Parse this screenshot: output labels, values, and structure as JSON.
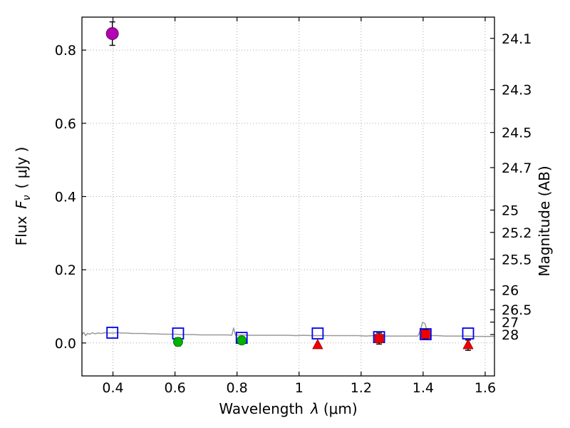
{
  "figure": {
    "background": "#ffffff"
  },
  "chart_data": {
    "type": "scatter",
    "title": "",
    "xlabel": {
      "word": "Wavelength",
      "symbol": "λ",
      "units": "(μm)",
      "full": "Wavelength λ (μm)"
    },
    "ylabel_left": {
      "word": "Flux",
      "symbol": "F",
      "sub": "ν",
      "units": "( μJy )",
      "full": "Flux Fν ( μJy )"
    },
    "ylabel_right": {
      "full": "Magnitude (AB)"
    },
    "xlim": [
      0.3,
      1.63
    ],
    "ylim": [
      -0.09,
      0.89
    ],
    "grid": {
      "show": true,
      "style": "dotted",
      "color": "#aaaaaa"
    },
    "legend": "none",
    "x_ticks": {
      "values": [
        0.4,
        0.6,
        0.8,
        1.0,
        1.2,
        1.4,
        1.6
      ],
      "labels": [
        "0.4",
        "0.6",
        "0.8",
        "1",
        "1.2",
        "1.4",
        "1.6"
      ]
    },
    "y_ticks_flux": {
      "values": [
        0.0,
        0.2,
        0.4,
        0.6,
        0.8
      ],
      "labels": [
        "0.0",
        "0.2",
        "0.4",
        "0.6",
        "0.8"
      ]
    },
    "y_ticks_mag": {
      "labels": [
        "24.1",
        "24.3",
        "24.5",
        "24.7",
        "25",
        "25.2",
        "25.5",
        "26",
        "26.5",
        "27",
        "28"
      ],
      "flux_values": [
        0.832,
        0.692,
        0.575,
        0.479,
        0.363,
        0.302,
        0.229,
        0.145,
        0.091,
        0.057,
        0.023
      ]
    },
    "series": [
      {
        "name": "model-spectrum",
        "kind": "line",
        "color": "#999999",
        "width": 1.5,
        "points": [
          [
            0.3,
            0.023
          ],
          [
            0.306,
            0.029
          ],
          [
            0.312,
            0.02
          ],
          [
            0.318,
            0.026
          ],
          [
            0.326,
            0.024
          ],
          [
            0.334,
            0.028
          ],
          [
            0.342,
            0.025
          ],
          [
            0.352,
            0.027
          ],
          [
            0.362,
            0.026
          ],
          [
            0.374,
            0.028
          ],
          [
            0.386,
            0.027
          ],
          [
            0.4,
            0.027
          ],
          [
            0.415,
            0.028
          ],
          [
            0.43,
            0.027
          ],
          [
            0.445,
            0.027
          ],
          [
            0.46,
            0.026
          ],
          [
            0.48,
            0.026
          ],
          [
            0.5,
            0.026
          ],
          [
            0.52,
            0.025
          ],
          [
            0.54,
            0.025
          ],
          [
            0.56,
            0.024
          ],
          [
            0.58,
            0.024
          ],
          [
            0.6,
            0.024
          ],
          [
            0.62,
            0.023
          ],
          [
            0.64,
            0.023
          ],
          [
            0.66,
            0.023
          ],
          [
            0.68,
            0.022
          ],
          [
            0.7,
            0.022
          ],
          [
            0.72,
            0.022
          ],
          [
            0.745,
            0.022
          ],
          [
            0.77,
            0.022
          ],
          [
            0.783,
            0.021
          ],
          [
            0.789,
            0.041
          ],
          [
            0.795,
            0.021
          ],
          [
            0.815,
            0.022
          ],
          [
            0.84,
            0.021
          ],
          [
            0.865,
            0.021
          ],
          [
            0.89,
            0.021
          ],
          [
            0.915,
            0.021
          ],
          [
            0.94,
            0.021
          ],
          [
            0.965,
            0.021
          ],
          [
            0.99,
            0.02
          ],
          [
            1.015,
            0.021
          ],
          [
            1.04,
            0.02
          ],
          [
            1.065,
            0.02
          ],
          [
            1.09,
            0.02
          ],
          [
            1.115,
            0.02
          ],
          [
            1.14,
            0.02
          ],
          [
            1.165,
            0.02
          ],
          [
            1.19,
            0.02
          ],
          [
            1.215,
            0.019
          ],
          [
            1.24,
            0.02
          ],
          [
            1.265,
            0.019
          ],
          [
            1.29,
            0.019
          ],
          [
            1.315,
            0.019
          ],
          [
            1.34,
            0.019
          ],
          [
            1.365,
            0.019
          ],
          [
            1.383,
            0.019
          ],
          [
            1.391,
            0.034
          ],
          [
            1.398,
            0.057
          ],
          [
            1.406,
            0.053
          ],
          [
            1.414,
            0.028
          ],
          [
            1.422,
            0.02
          ],
          [
            1.445,
            0.02
          ],
          [
            1.47,
            0.019
          ],
          [
            1.495,
            0.019
          ],
          [
            1.52,
            0.019
          ],
          [
            1.545,
            0.019
          ],
          [
            1.57,
            0.018
          ],
          [
            1.6,
            0.018
          ],
          [
            1.63,
            0.018
          ]
        ]
      },
      {
        "name": "model-photometry",
        "kind": "scatter",
        "marker": "open-square",
        "color": "#0000ee",
        "size": 15,
        "points": [
          [
            0.398,
            0.028
          ],
          [
            0.61,
            0.026
          ],
          [
            0.815,
            0.014
          ],
          [
            1.06,
            0.026
          ],
          [
            1.258,
            0.016
          ],
          [
            1.408,
            0.024
          ],
          [
            1.545,
            0.026
          ]
        ],
        "yerr": [
          0,
          0,
          0,
          0,
          0,
          0,
          0
        ]
      },
      {
        "name": "observed-uband",
        "kind": "scatter",
        "marker": "circle",
        "color": "#b300b3",
        "edge": "#5e005e",
        "size": 17,
        "points": [
          [
            0.398,
            0.845
          ]
        ],
        "yerr": [
          0.032
        ]
      },
      {
        "name": "observed-optical",
        "kind": "scatter",
        "marker": "circle",
        "color": "#00b300",
        "edge": "#006400",
        "size": 13,
        "points": [
          [
            0.61,
            0.003
          ],
          [
            0.815,
            0.007
          ]
        ],
        "yerr": [
          0.011,
          0.008
        ]
      },
      {
        "name": "observed-nir",
        "kind": "scatter",
        "marker": "square",
        "color": "#ee0000",
        "edge": "#990000",
        "size": 12,
        "points": [
          [
            1.258,
            0.012
          ],
          [
            1.408,
            0.024
          ]
        ],
        "yerr": [
          0.015,
          0.012
        ]
      },
      {
        "name": "upper-limits",
        "kind": "scatter",
        "marker": "triangle-up",
        "color": "#ee0000",
        "edge": "#990000",
        "size": 14,
        "points": [
          [
            1.06,
            -0.006
          ],
          [
            1.545,
            -0.006
          ]
        ],
        "yerr": [
          0,
          0.014
        ]
      }
    ]
  }
}
